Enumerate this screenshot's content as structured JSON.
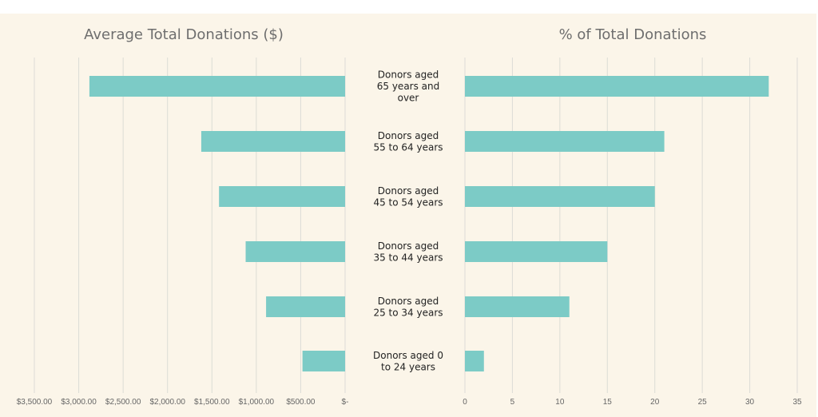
{
  "chart_data": [
    {
      "type": "bar",
      "title": "Average Total Donations ($)",
      "orientation": "horizontal",
      "direction": "right-to-left",
      "categories": [
        "Donors aged 65 years and over",
        "Donors aged 55 to 64 years",
        "Donors aged 45 to 54 years",
        "Donors aged 35 to 44 years",
        "Donors aged 25 to 34 years",
        "Donors aged 0 to 24 years"
      ],
      "values": [
        2880,
        1620,
        1420,
        1120,
        890,
        480
      ],
      "xlim": [
        0,
        3500
      ],
      "xticks": [
        3500,
        3000,
        2500,
        2000,
        1500,
        1000,
        500,
        0
      ],
      "xtick_labels": [
        "$3,500.00",
        "$3,000.00",
        "$2,500.00",
        "$2,000.00",
        "$1,500.00",
        "$1,000.00",
        "$500.00",
        "$-"
      ],
      "grid": true,
      "color": "#7ccbc6"
    },
    {
      "type": "bar",
      "title": "% of Total Donations",
      "orientation": "horizontal",
      "categories": [
        "Donors aged 65 years and over",
        "Donors aged 55 to 64 years",
        "Donors aged 45 to 54 years",
        "Donors aged 35 to 44 years",
        "Donors aged 25 to 34 years",
        "Donors aged 0 to 24 years"
      ],
      "values": [
        32,
        21,
        20,
        15,
        11,
        2
      ],
      "xlim": [
        0,
        35
      ],
      "xticks": [
        0,
        5,
        10,
        15,
        20,
        25,
        30,
        35
      ],
      "xtick_labels": [
        "0",
        "5",
        "10",
        "15",
        "20",
        "25",
        "30",
        "35"
      ],
      "grid": true,
      "color": "#7ccbc6"
    }
  ],
  "category_labels": [
    [
      "Donors aged",
      "65 years and",
      "over"
    ],
    [
      "Donors aged",
      "55 to 64 years"
    ],
    [
      "Donors aged",
      "45 to 54 years"
    ],
    [
      "Donors aged",
      "35 to 44 years"
    ],
    [
      "Donors aged",
      "25 to 34 years"
    ],
    [
      "Donors aged 0",
      "to 24 years"
    ]
  ]
}
